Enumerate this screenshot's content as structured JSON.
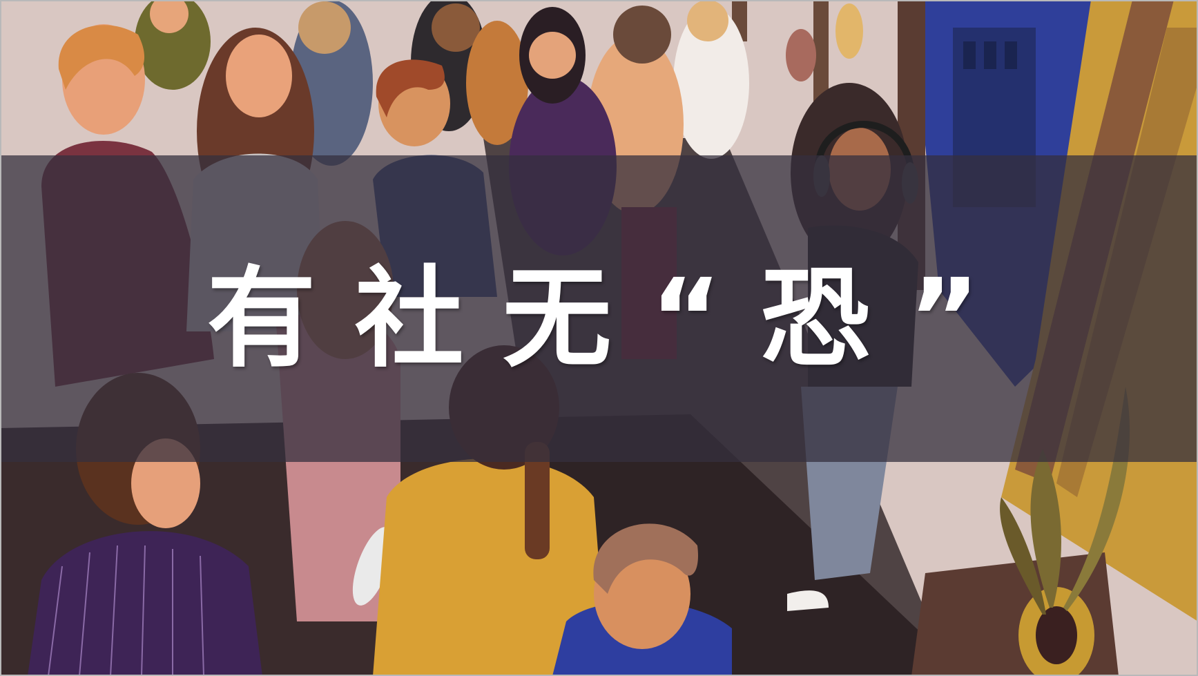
{
  "slide": {
    "title": "有社无“恐”",
    "illustration": "crowded-party-illustration",
    "colors": {
      "band": "#342f3e",
      "title_text": "#ffffff",
      "wall": "#d9c7c2",
      "floor": "#3a2a2a",
      "curtain_gold": "#c99a3a",
      "night_window": "#2f3f9a"
    }
  }
}
